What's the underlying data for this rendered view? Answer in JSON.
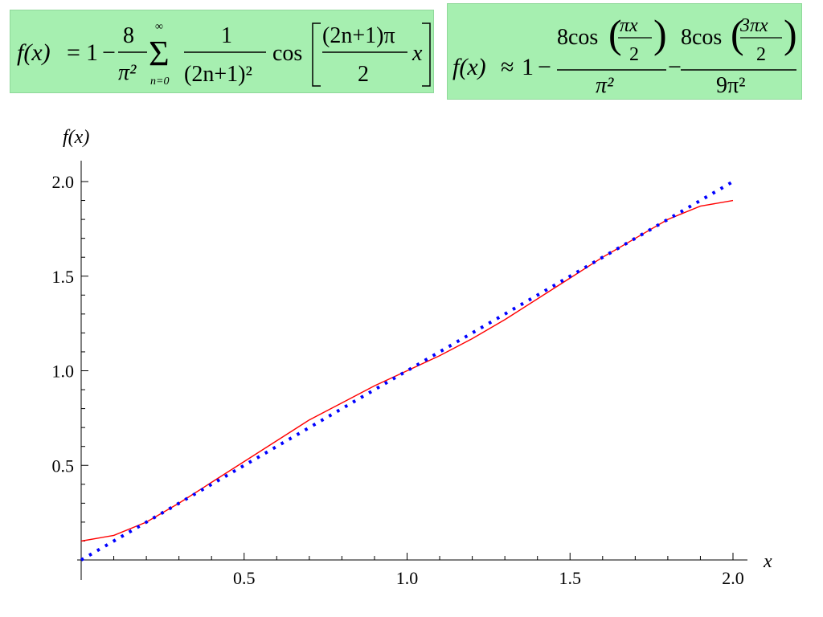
{
  "formulas": {
    "series": {
      "lhs": "f(x)",
      "eq": "=",
      "one": "1",
      "minus": "−",
      "coef_num": "8",
      "coef_den": "π²",
      "sum_upper": "∞",
      "sum_lower": "n=0",
      "sigma": "Σ",
      "frac_num": "1",
      "frac_den": "(2n+1)²",
      "cos": "cos",
      "arg_num": "(2n+1)π",
      "arg_den": "2",
      "arg_x": "x"
    },
    "approx": {
      "lhs": "f(x)",
      "approx": "≈",
      "one": "1",
      "minus": "−",
      "term1_num": "8cos",
      "term1_inner_num": "πx",
      "term1_inner_den": "2",
      "term1_den": "π²",
      "term2_num": "8cos",
      "term2_inner_num": "3πx",
      "term2_inner_den": "2",
      "term2_den": "9π²"
    }
  },
  "colors": {
    "formula_bg": "#a6efb0",
    "series_solid": "#ff0000",
    "series_dotted": "#0000ff"
  },
  "chart_data": {
    "type": "line",
    "xlabel": "x",
    "ylabel": "f(x)",
    "xlim": [
      0,
      2.0
    ],
    "ylim": [
      0,
      2.0
    ],
    "x_ticks": [
      "0.5",
      "1.0",
      "1.5",
      "2.0"
    ],
    "y_ticks": [
      "0.5",
      "1.0",
      "1.5",
      "2.0"
    ],
    "grid": false,
    "series": [
      {
        "style": "solid",
        "x": [
          0.0,
          0.1,
          0.2,
          0.3,
          0.4,
          0.5,
          0.6,
          0.7,
          0.8,
          0.9,
          1.0,
          1.1,
          1.2,
          1.3,
          1.4,
          1.5,
          1.6,
          1.7,
          1.8,
          1.9,
          2.0
        ],
        "y": [
          0.1,
          0.13,
          0.2,
          0.3,
          0.41,
          0.52,
          0.63,
          0.74,
          0.83,
          0.92,
          1.0,
          1.08,
          1.17,
          1.27,
          1.38,
          1.49,
          1.6,
          1.7,
          1.8,
          1.87,
          1.9
        ]
      },
      {
        "style": "dotted",
        "x": [
          0.0,
          0.5,
          1.0,
          1.5,
          2.0
        ],
        "y": [
          0.0,
          0.5,
          1.0,
          1.5,
          2.0
        ]
      }
    ]
  }
}
